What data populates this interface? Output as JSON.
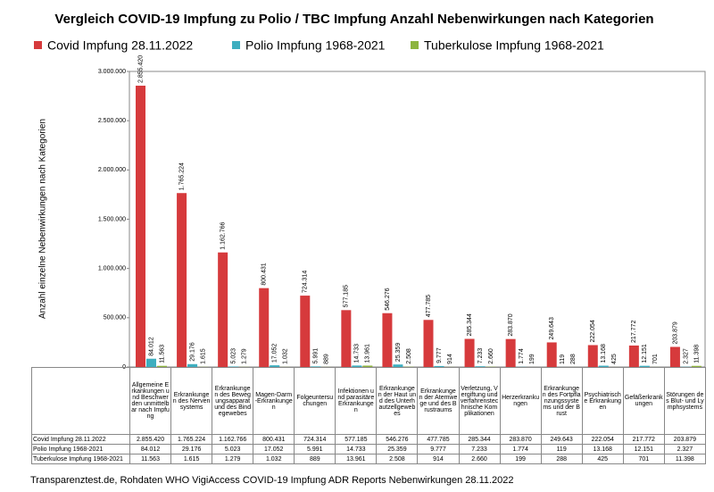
{
  "chart_data": {
    "type": "bar",
    "title": "Vergleich COVID-19 Impfung zu Polio / TBC Impfung Anzahl Nebenwirkungen nach Kategorien",
    "y_label": "Anzahl einzelne Nebenwirkungen nach Kategorien",
    "footnote": "Transparenztest.de, Rohdaten WHO VigiAccess COVID-19 Impfung ADR Reports Nebenwirkungen 28.11.2022",
    "categories": [
      "Allgemeine Erkankungen und Beschwerden unmittelbar nach Impfung",
      "Erkrankungen des Nervensystems",
      "Erkrankungen des Bewegungsapparat und des Bindegewebes",
      "Magen-Darm-Erkrankungen",
      "Folgeuntersuchungen",
      "Infektionen und parasitäre Erkrankungen",
      "Erkrankungen der Haut und des Unterhautzellgewebes",
      "Erkrankungen der Atemwege und des Brustraums",
      "Verletzung, Vergiftung und verfahrenstechnische Komplikationen",
      "Herzerkrankungen",
      "Erkrankungen des Fortpflanzungssystems und der Brust",
      "Psychiatrische Erkrankungen",
      "Gefäßerkrankungen",
      "Störungen des Blut- und Lymphsystems"
    ],
    "series": [
      {
        "name": "Covid Impfung 28.11.2022",
        "color": "#d63a3c",
        "values": [
          2855420,
          1765224,
          1162766,
          800431,
          724314,
          577185,
          546276,
          477785,
          285344,
          283870,
          249643,
          222054,
          217772,
          203879
        ],
        "value_labels": [
          "2.855.420",
          "1.765.224",
          "1.162.766",
          "800.431",
          "724.314",
          "577.185",
          "546.276",
          "477.785",
          "285.344",
          "283.870",
          "249.643",
          "222.054",
          "217.772",
          "203.879"
        ]
      },
      {
        "name": "Polio Impfung 1968-2021",
        "color": "#3eaebf",
        "values": [
          84012,
          29176,
          5023,
          17052,
          5991,
          14733,
          25359,
          9777,
          7233,
          1774,
          119,
          13168,
          12151,
          2327
        ],
        "value_labels": [
          "84.012",
          "29.176",
          "5.023",
          "17.052",
          "5.991",
          "14.733",
          "25.359",
          "9.777",
          "7.233",
          "1.774",
          "119",
          "13.168",
          "12.151",
          "2.327"
        ]
      },
      {
        "name": "Tuberkulose Impfung 1968-2021",
        "color": "#8db53f",
        "values": [
          11563,
          1615,
          1279,
          1032,
          889,
          13961,
          2508,
          914,
          2660,
          199,
          288,
          425,
          701,
          11398
        ],
        "value_labels": [
          "11.563",
          "1.615",
          "1.279",
          "1.032",
          "889",
          "13.961",
          "2.508",
          "914",
          "2.660",
          "199",
          "288",
          "425",
          "701",
          "11.398"
        ]
      }
    ],
    "ylim": [
      0,
      3000000
    ],
    "yticks": [
      0,
      {
        "value": 500000,
        "label": "500.000"
      },
      {
        "value": 1000000,
        "label": "1.000.000"
      },
      {
        "value": 1500000,
        "label": "1.500.000"
      },
      {
        "value": 2000000,
        "label": "2.000.000"
      },
      {
        "value": 2500000,
        "label": "2.500.000"
      },
      {
        "value": 3000000,
        "label": "3.000.000"
      }
    ]
  }
}
